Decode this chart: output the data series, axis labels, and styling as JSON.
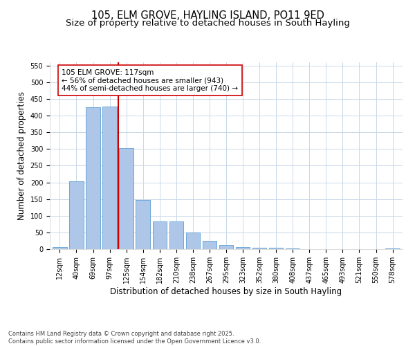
{
  "title_line1": "105, ELM GROVE, HAYLING ISLAND, PO11 9ED",
  "title_line2": "Size of property relative to detached houses in South Hayling",
  "xlabel": "Distribution of detached houses by size in South Hayling",
  "ylabel": "Number of detached properties",
  "categories": [
    "12sqm",
    "40sqm",
    "69sqm",
    "97sqm",
    "125sqm",
    "154sqm",
    "182sqm",
    "210sqm",
    "238sqm",
    "267sqm",
    "295sqm",
    "323sqm",
    "352sqm",
    "380sqm",
    "408sqm",
    "437sqm",
    "465sqm",
    "493sqm",
    "521sqm",
    "550sqm",
    "578sqm"
  ],
  "values": [
    7,
    203,
    425,
    428,
    303,
    148,
    83,
    83,
    50,
    25,
    12,
    7,
    5,
    5,
    3,
    1,
    0,
    0,
    0,
    0,
    2
  ],
  "bar_color": "#aec6e8",
  "bar_edge_color": "#5a9fd4",
  "vline_x": 3.5,
  "vline_color": "#cc0000",
  "annotation_text": "105 ELM GROVE: 117sqm\n← 56% of detached houses are smaller (943)\n44% of semi-detached houses are larger (740) →",
  "box_color": "#ffffff",
  "box_edge_color": "#cc0000",
  "ylim": [
    0,
    560
  ],
  "yticks": [
    0,
    50,
    100,
    150,
    200,
    250,
    300,
    350,
    400,
    450,
    500,
    550
  ],
  "footnote": "Contains HM Land Registry data © Crown copyright and database right 2025.\nContains public sector information licensed under the Open Government Licence v3.0.",
  "title_fontsize": 10.5,
  "subtitle_fontsize": 9.5,
  "axis_fontsize": 8.5,
  "tick_fontsize": 7,
  "annot_fontsize": 7.5,
  "footnote_fontsize": 6,
  "bg_color": "#ffffff",
  "grid_color": "#c8d8e8"
}
